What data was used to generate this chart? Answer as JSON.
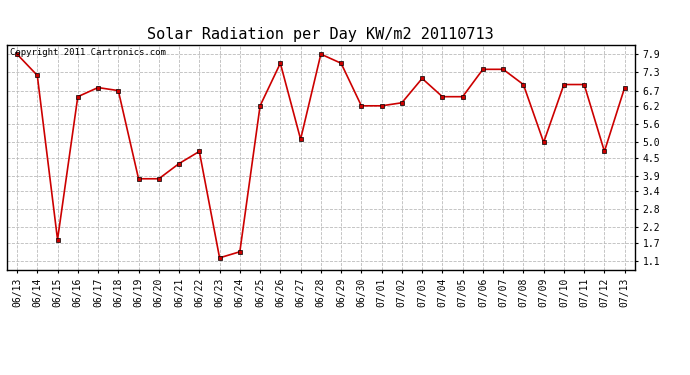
{
  "title": "Solar Radiation per Day KW/m2 20110713",
  "copyright_text": "Copyright 2011 Cartronics.com",
  "dates": [
    "06/13",
    "06/14",
    "06/15",
    "06/16",
    "06/17",
    "06/18",
    "06/19",
    "06/20",
    "06/21",
    "06/22",
    "06/23",
    "06/24",
    "06/25",
    "06/26",
    "06/27",
    "06/28",
    "06/29",
    "06/30",
    "07/01",
    "07/02",
    "07/03",
    "07/04",
    "07/05",
    "07/06",
    "07/07",
    "07/08",
    "07/09",
    "07/10",
    "07/11",
    "07/12",
    "07/13"
  ],
  "values": [
    7.9,
    7.2,
    1.8,
    6.5,
    6.8,
    6.7,
    3.8,
    3.8,
    4.3,
    4.7,
    1.2,
    1.4,
    6.2,
    7.6,
    5.1,
    7.9,
    7.6,
    6.2,
    6.2,
    6.3,
    7.1,
    6.5,
    6.5,
    7.4,
    7.4,
    6.9,
    5.0,
    6.9,
    6.9,
    4.7,
    6.8
  ],
  "yticks": [
    1.1,
    1.7,
    2.2,
    2.8,
    3.4,
    3.9,
    4.5,
    5.0,
    5.6,
    6.2,
    6.7,
    7.3,
    7.9
  ],
  "ymin": 0.8,
  "ymax": 8.2,
  "line_color": "#cc0000",
  "marker_size": 3,
  "background_color": "#ffffff",
  "grid_color": "#bbbbbb",
  "title_fontsize": 11,
  "tick_fontsize": 7,
  "copyright_fontsize": 6.5
}
